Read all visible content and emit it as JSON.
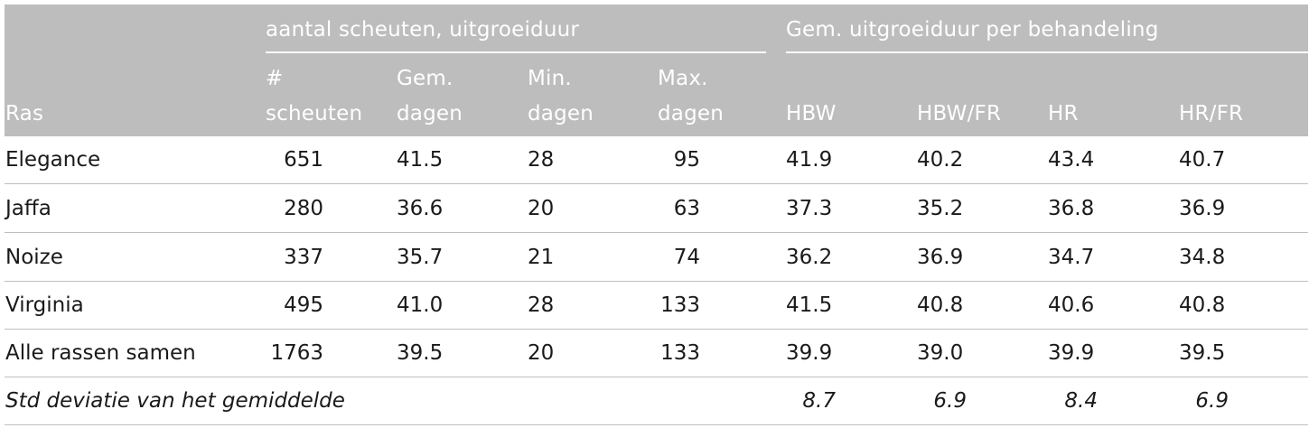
{
  "header": {
    "group1": "aantal scheuten, uitgroeiduur",
    "group2": "Gem. uitgroeiduur per behandeling",
    "ras": "Ras",
    "col_scheuten_l1": "#",
    "col_scheuten_l2": "scheuten",
    "col_gem_l1": "Gem.",
    "col_gem_l2": "dagen",
    "col_min_l1": "Min.",
    "col_min_l2": "dagen",
    "col_max_l1": "Max.",
    "col_max_l2": "dagen",
    "col_hbw": "HBW",
    "col_hbwfr": "HBW/FR",
    "col_hr": "HR",
    "col_hrfr": "HR/FR"
  },
  "rows": [
    {
      "ras": "Elegance",
      "scheuten": "651",
      "gem": "41.5",
      "min": "28",
      "max": "95",
      "hbw": "41.9",
      "hbwfr": "40.2",
      "hr": "43.4",
      "hrfr": "40.7"
    },
    {
      "ras": "Jaffa",
      "scheuten": "280",
      "gem": "36.6",
      "min": "20",
      "max": "63",
      "hbw": "37.3",
      "hbwfr": "35.2",
      "hr": "36.8",
      "hrfr": "36.9"
    },
    {
      "ras": "Noize",
      "scheuten": "337",
      "gem": "35.7",
      "min": "21",
      "max": "74",
      "hbw": "36.2",
      "hbwfr": "36.9",
      "hr": "34.7",
      "hrfr": "34.8"
    },
    {
      "ras": "Virginia",
      "scheuten": "495",
      "gem": "41.0",
      "min": "28",
      "max": "133",
      "hbw": "41.5",
      "hbwfr": "40.8",
      "hr": "40.6",
      "hrfr": "40.8"
    },
    {
      "ras": "Alle rassen samen",
      "scheuten": "1763",
      "gem": "39.5",
      "min": "20",
      "max": "133",
      "hbw": "39.9",
      "hbwfr": "39.0",
      "hr": "39.9",
      "hrfr": "39.5"
    }
  ],
  "std": {
    "label": "Std deviatie van het gemiddelde",
    "hbw": "8.7",
    "hbwfr": "6.9",
    "hr": "8.4",
    "hrfr": "6.9"
  }
}
